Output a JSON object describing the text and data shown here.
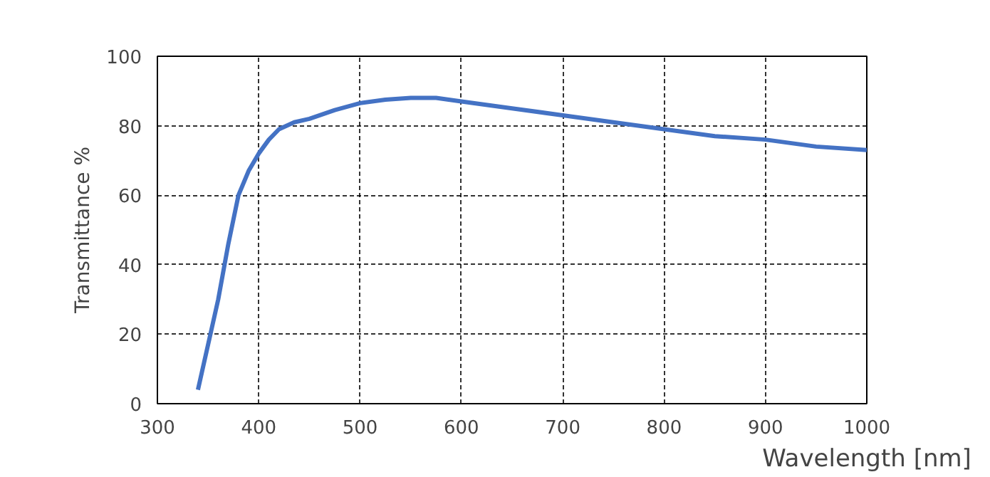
{
  "chart_data": {
    "type": "line",
    "xlabel": "Wavelength [nm]",
    "ylabel": "Transmittance %",
    "x": [
      340,
      350,
      360,
      370,
      380,
      390,
      400,
      410,
      420,
      435,
      450,
      475,
      500,
      525,
      550,
      575,
      600,
      650,
      700,
      750,
      800,
      850,
      900,
      950,
      1000
    ],
    "series": [
      {
        "color": "#4472c4",
        "values": [
          4,
          17,
          30,
          46,
          60,
          67,
          72,
          76,
          79,
          81,
          82,
          84.5,
          86.5,
          87.5,
          88,
          88,
          87,
          85,
          83,
          81,
          79,
          77,
          76,
          74,
          73
        ]
      }
    ],
    "xlim": [
      300,
      1000
    ],
    "ylim": [
      0,
      100
    ],
    "xticks": [
      300,
      400,
      500,
      600,
      700,
      800,
      900,
      1000
    ],
    "yticks": [
      0,
      20,
      40,
      60,
      80,
      100
    ],
    "grid": true,
    "line_style": "solid",
    "marker": "none"
  }
}
